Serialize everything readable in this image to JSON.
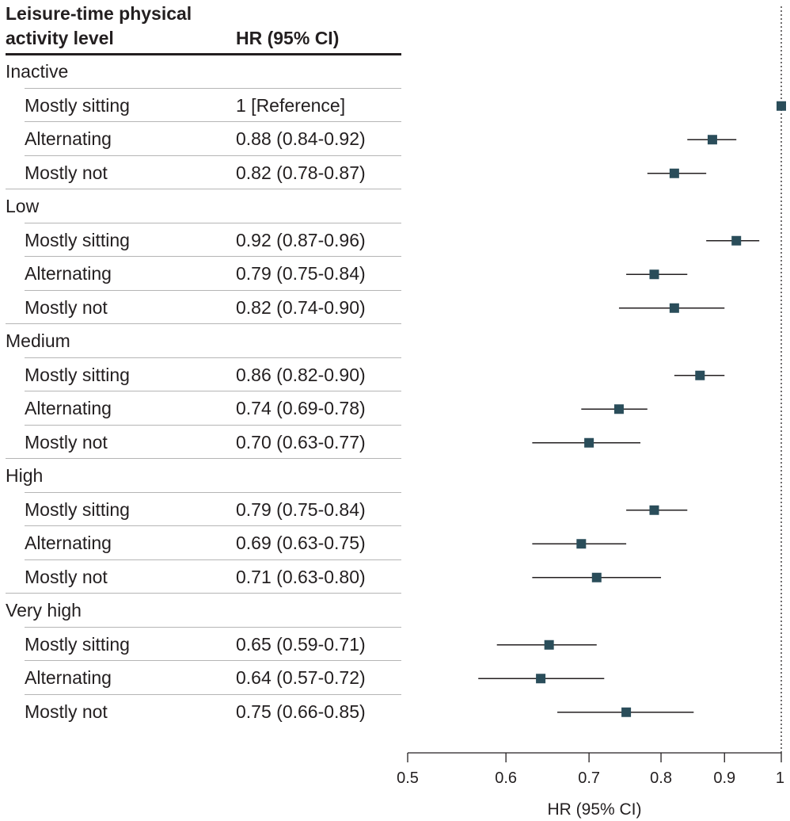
{
  "table": {
    "header_level": "Leisure-time physical activity level",
    "header_hr": "HR (95% CI)"
  },
  "groups": [
    {
      "label": "Inactive",
      "rows": [
        {
          "label": "Mostly sitting",
          "hr_text": "1 [Reference]"
        },
        {
          "label": "Alternating",
          "hr_text": "0.88 (0.84-0.92)"
        },
        {
          "label": "Mostly not",
          "hr_text": "0.82 (0.78-0.87)"
        }
      ]
    },
    {
      "label": "Low",
      "rows": [
        {
          "label": "Mostly sitting",
          "hr_text": "0.92 (0.87-0.96)"
        },
        {
          "label": "Alternating",
          "hr_text": "0.79 (0.75-0.84)"
        },
        {
          "label": "Mostly not",
          "hr_text": "0.82 (0.74-0.90)"
        }
      ]
    },
    {
      "label": "Medium",
      "rows": [
        {
          "label": "Mostly sitting",
          "hr_text": "0.86 (0.82-0.90)"
        },
        {
          "label": "Alternating",
          "hr_text": "0.74 (0.69-0.78)"
        },
        {
          "label": "Mostly not",
          "hr_text": "0.70 (0.63-0.77)"
        }
      ]
    },
    {
      "label": "High",
      "rows": [
        {
          "label": "Mostly sitting",
          "hr_text": "0.79 (0.75-0.84)"
        },
        {
          "label": "Alternating",
          "hr_text": "0.69 (0.63-0.75)"
        },
        {
          "label": "Mostly not",
          "hr_text": "0.71 (0.63-0.80)"
        }
      ]
    },
    {
      "label": "Very high",
      "rows": [
        {
          "label": "Mostly sitting",
          "hr_text": "0.65 (0.59-0.71)"
        },
        {
          "label": "Alternating",
          "hr_text": "0.64 (0.57-0.72)"
        },
        {
          "label": "Mostly not",
          "hr_text": "0.75 (0.66-0.85)"
        }
      ]
    }
  ],
  "chart_data": {
    "type": "forest",
    "xlabel": "HR (95% CI)",
    "x_scale": "log",
    "xlim": [
      0.5,
      1
    ],
    "xticks": [
      0.5,
      0.6,
      0.7,
      0.8,
      0.9,
      1
    ],
    "xtick_labels": [
      "0.5",
      "0.6",
      "0.7",
      "0.8",
      "0.9",
      "1"
    ],
    "reference_line": 1,
    "points": [
      {
        "group": "Inactive",
        "label": "Mostly sitting",
        "hr": 1.0,
        "lo": 1.0,
        "hi": 1.0
      },
      {
        "group": "Inactive",
        "label": "Alternating",
        "hr": 0.88,
        "lo": 0.84,
        "hi": 0.92
      },
      {
        "group": "Inactive",
        "label": "Mostly not",
        "hr": 0.82,
        "lo": 0.78,
        "hi": 0.87
      },
      {
        "group": "Low",
        "label": "Mostly sitting",
        "hr": 0.92,
        "lo": 0.87,
        "hi": 0.96
      },
      {
        "group": "Low",
        "label": "Alternating",
        "hr": 0.79,
        "lo": 0.75,
        "hi": 0.84
      },
      {
        "group": "Low",
        "label": "Mostly not",
        "hr": 0.82,
        "lo": 0.74,
        "hi": 0.9
      },
      {
        "group": "Medium",
        "label": "Mostly sitting",
        "hr": 0.86,
        "lo": 0.82,
        "hi": 0.9
      },
      {
        "group": "Medium",
        "label": "Alternating",
        "hr": 0.74,
        "lo": 0.69,
        "hi": 0.78
      },
      {
        "group": "Medium",
        "label": "Mostly not",
        "hr": 0.7,
        "lo": 0.63,
        "hi": 0.77
      },
      {
        "group": "High",
        "label": "Mostly sitting",
        "hr": 0.79,
        "lo": 0.75,
        "hi": 0.84
      },
      {
        "group": "High",
        "label": "Alternating",
        "hr": 0.69,
        "lo": 0.63,
        "hi": 0.75
      },
      {
        "group": "High",
        "label": "Mostly not",
        "hr": 0.71,
        "lo": 0.63,
        "hi": 0.8
      },
      {
        "group": "Very high",
        "label": "Mostly sitting",
        "hr": 0.65,
        "lo": 0.59,
        "hi": 0.71
      },
      {
        "group": "Very high",
        "label": "Alternating",
        "hr": 0.64,
        "lo": 0.57,
        "hi": 0.72
      },
      {
        "group": "Very high",
        "label": "Mostly not",
        "hr": 0.75,
        "lo": 0.66,
        "hi": 0.85
      }
    ]
  },
  "colors": {
    "marker": "#2a4d5a",
    "text": "#231f20",
    "rule": "#b5b5b5"
  }
}
